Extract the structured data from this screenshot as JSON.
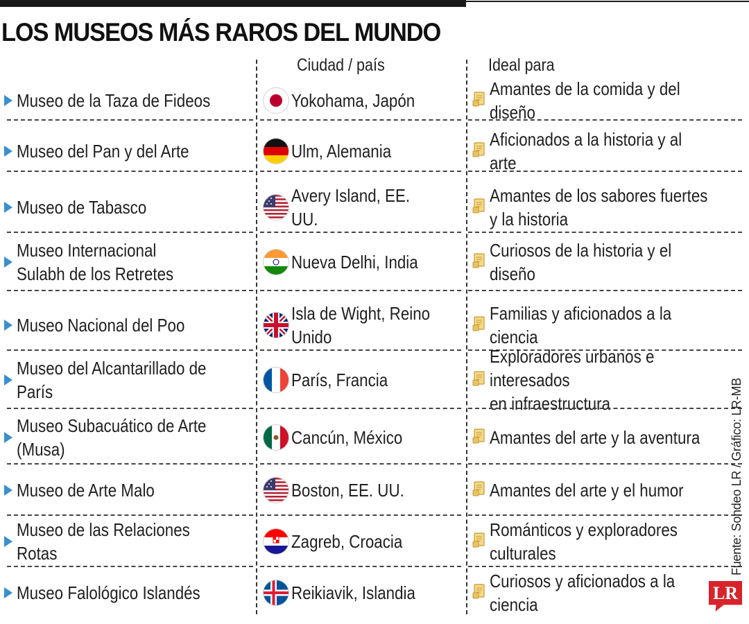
{
  "title": "LOS MUSEOS MÁS RAROS DEL MUNDO",
  "headers": {
    "city": "Ciudad / país",
    "ideal": "Ideal para"
  },
  "rows": [
    {
      "name": "Museo de la Taza de Fideos",
      "flag": "japan-flag-icon",
      "city": "Yokohama, Japón",
      "ideal": "Amantes de la comida y del diseño"
    },
    {
      "name": "Museo del Pan y del Arte",
      "flag": "germany-flag-icon",
      "city": "Ulm, Alemania",
      "ideal": "Aficionados a la historia y al arte"
    },
    {
      "name": "Museo de Tabasco",
      "flag": "usa-flag-icon",
      "city": "Avery Island, EE. UU.",
      "ideal": "Amantes de los sabores fuertes\ny la historia"
    },
    {
      "name": "Museo Internacional\nSulabh de los Retretes",
      "flag": "india-flag-icon",
      "city": "Nueva Delhi, India",
      "ideal": "Curiosos de la historia y el diseño"
    },
    {
      "name": "Museo Nacional del Poo",
      "flag": "uk-flag-icon",
      "city": "Isla de Wight, Reino Unido",
      "ideal": "Familias y aficionados a la ciencia"
    },
    {
      "name": "Museo del Alcantarillado de París",
      "flag": "france-flag-icon",
      "city": "París, Francia",
      "ideal": "Exploradores urbanos e interesados\nen infraestructura"
    },
    {
      "name": "Museo Subacuático de Arte\n(Musa)",
      "flag": "mexico-flag-icon",
      "city": "Cancún, México",
      "ideal": "Amantes del arte y la aventura"
    },
    {
      "name": "Museo de Arte Malo",
      "flag": "usa-flag-icon",
      "city": "Boston, EE. UU.",
      "ideal": "Amantes del arte y el humor"
    },
    {
      "name": "Museo de las Relaciones Rotas",
      "flag": "croatia-flag-icon",
      "city": "Zagreb, Croacia",
      "ideal": "Románticos y exploradores culturales"
    },
    {
      "name": "Museo Falológico Islandés",
      "flag": "iceland-flag-icon",
      "city": "Reikiavik, Islandia",
      "ideal": "Curiosos y aficionados a la ciencia"
    }
  ],
  "credit": "Fuente: Sondeo LR / Gráfico: LR-MB",
  "logo": "LR",
  "colors": {
    "accent": "#3a8fd0",
    "icon": "#e8c26a",
    "logo": "#d8232a"
  }
}
